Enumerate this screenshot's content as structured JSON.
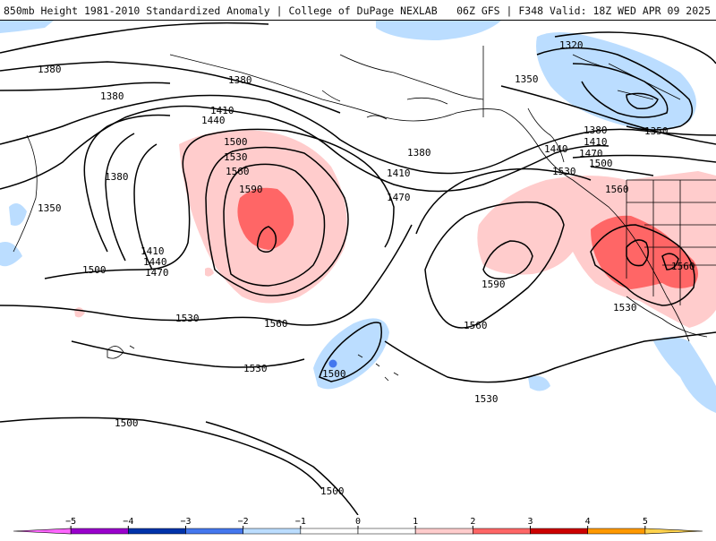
{
  "header": {
    "title": "850mb Height 1981-2010 Standardized Anomaly | College of DuPage NEXLAB",
    "run_info": "06Z GFS | F348 Valid: 18Z WED APR 09 2025"
  },
  "contour_labels": [
    "1320",
    "1350",
    "1380",
    "1410",
    "1440",
    "1470",
    "1500",
    "1530",
    "1560",
    "1590"
  ],
  "colorbar": {
    "ticks": [
      "−5",
      "−4",
      "−3",
      "−2",
      "−1",
      "0",
      "1",
      "2",
      "3",
      "4",
      "5"
    ],
    "colors": [
      "#ff66ff",
      "#9900cc",
      "#0033aa",
      "#4477ee",
      "#bbddff",
      "#ffffff",
      "#ffffff",
      "#ffcccc",
      "#ff6666",
      "#cc0000",
      "#ff9900",
      "#ffd24d"
    ]
  }
}
